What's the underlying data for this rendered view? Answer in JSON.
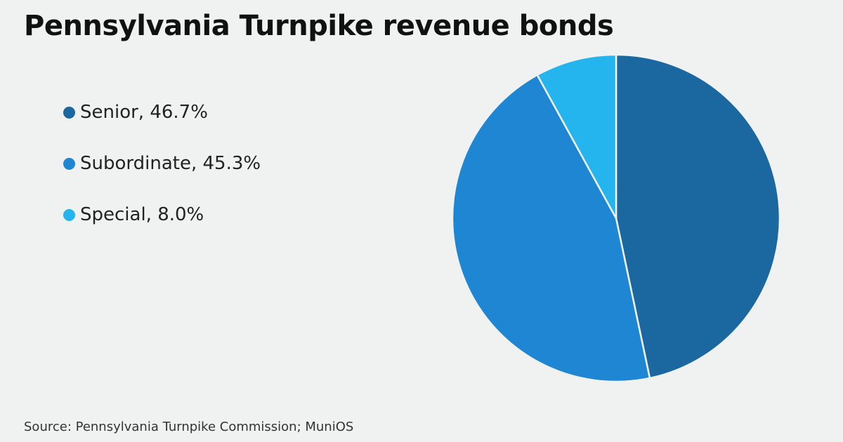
{
  "chart_data": {
    "type": "pie",
    "title": "Pennsylvania Turnpike revenue bonds",
    "slices": [
      {
        "name": "Senior",
        "value": 46.7,
        "label": "Senior, 46.7%",
        "color": "#1b68a0"
      },
      {
        "name": "Subordinate",
        "value": 45.3,
        "label": "Subordinate, 45.3%",
        "color": "#1e86d3"
      },
      {
        "name": "Special",
        "value": 8.0,
        "label": "Special, 8.0%",
        "color": "#24b5ef"
      }
    ],
    "legend_position": "left",
    "start_angle": "12 o'clock",
    "direction": "clockwise",
    "source": "Source: Pennsylvania Turnpike Commission; MuniOS"
  }
}
